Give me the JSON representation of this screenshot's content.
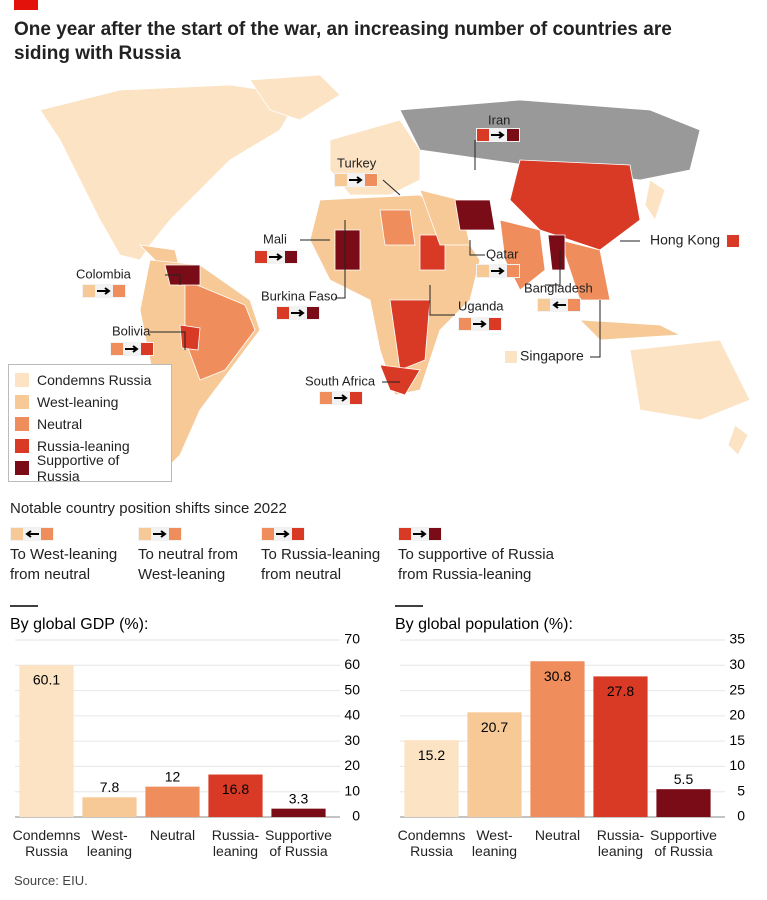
{
  "title": "One year after the start of the war, an increasing number of countries are siding with Russia",
  "map": {
    "labels": [
      "Iran",
      "Turkey",
      "Mali",
      "Colombia",
      "Bolivia",
      "Burkina Faso",
      "South Africa",
      "Qatar",
      "Uganda",
      "Bangladesh",
      "Hong Kong",
      "Singapore"
    ],
    "legend": [
      {
        "label": "Condemns Russia",
        "color": "#fbe3c4"
      },
      {
        "label": "West-leaning",
        "color": "#f7c997"
      },
      {
        "label": "Neutral",
        "color": "#ef8e5c"
      },
      {
        "label": "Russia-leaning",
        "color": "#d83a26"
      },
      {
        "label": "Supportive of Russia",
        "color": "#7a0c17"
      }
    ]
  },
  "shifts": {
    "title": "Notable country position shifts since 2022",
    "items": [
      "To West-leaning from neutral",
      "To neutral from West-leaning",
      "To Russia-leaning from neutral",
      "To supportive of Russia from Russia-leaning"
    ]
  },
  "chart_data": [
    {
      "type": "bar",
      "title": "By global GDP (%):",
      "categories": [
        "Condemns Russia",
        "West-leaning",
        "Neutral",
        "Russia-leaning",
        "Supportive of Russia"
      ],
      "values": [
        60.1,
        7.8,
        12,
        16.8,
        3.3
      ],
      "colors": [
        "#fbe3c4",
        "#f7c997",
        "#ef8e5c",
        "#d83a26",
        "#7a0c17"
      ],
      "ylim": [
        0,
        70
      ],
      "yticks": [
        0,
        10,
        20,
        30,
        40,
        50,
        60,
        70
      ],
      "grid": true
    },
    {
      "type": "bar",
      "title": "By global population (%):",
      "categories": [
        "Condemns Russia",
        "West-leaning",
        "Neutral",
        "Russia-leaning",
        "Supportive of Russia"
      ],
      "values": [
        15.2,
        20.7,
        30.8,
        27.8,
        5.5
      ],
      "colors": [
        "#fbe3c4",
        "#f7c997",
        "#ef8e5c",
        "#d83a26",
        "#7a0c17"
      ],
      "ylim": [
        0,
        35
      ],
      "yticks": [
        0,
        5,
        10,
        15,
        20,
        25,
        30,
        35
      ],
      "grid": true
    }
  ],
  "source": "Source: EIU."
}
